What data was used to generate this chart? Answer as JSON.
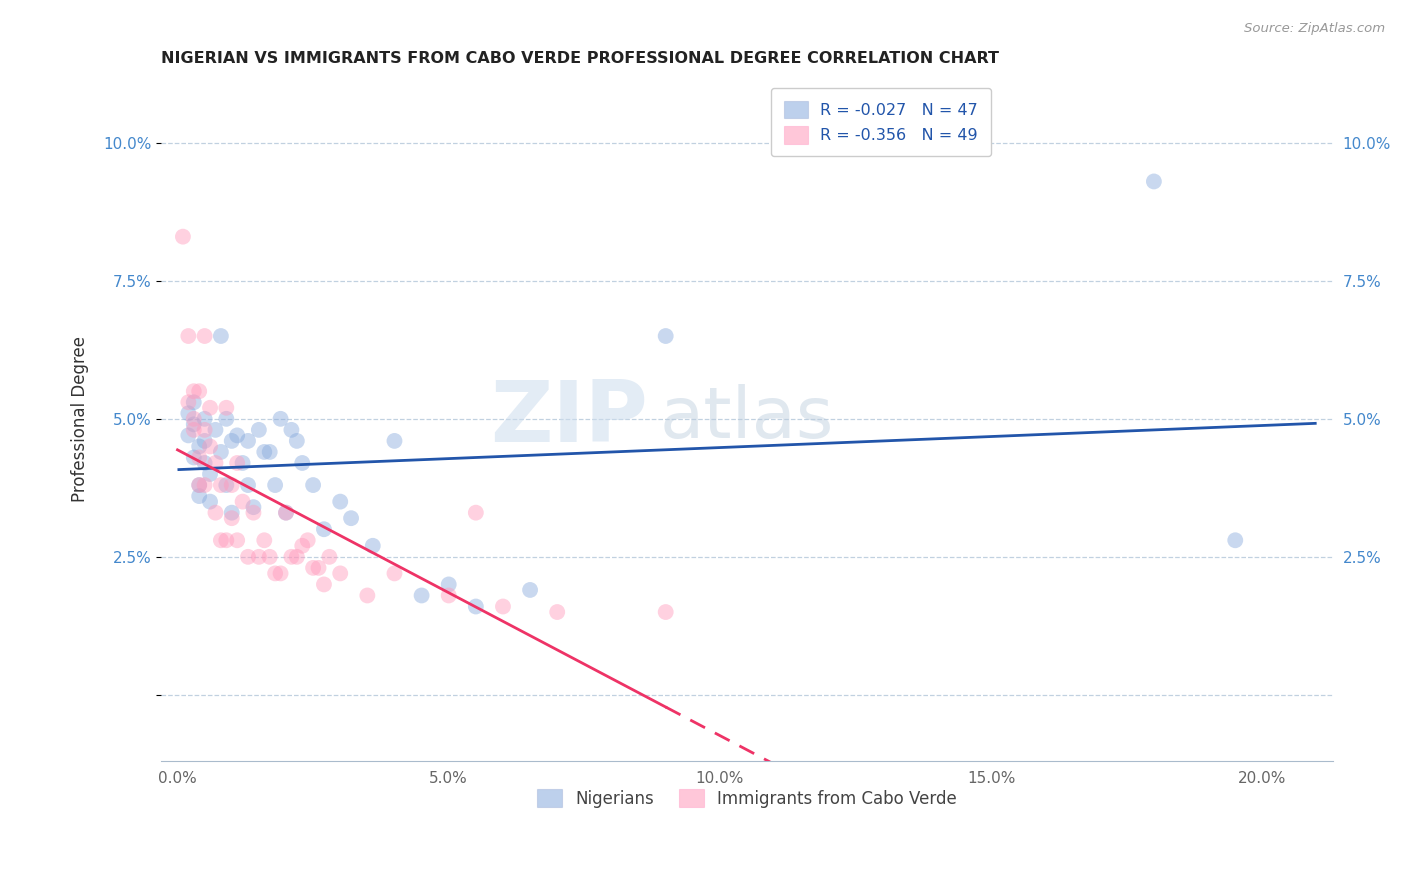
{
  "title": "NIGERIAN VS IMMIGRANTS FROM CABO VERDE PROFESSIONAL DEGREE CORRELATION CHART",
  "source": "Source: ZipAtlas.com",
  "xlabel_ticks": [
    0.0,
    0.05,
    0.1,
    0.15,
    0.2
  ],
  "xlabel_labels": [
    "0.0%",
    "5.0%",
    "10.0%",
    "15.0%",
    "20.0%"
  ],
  "ylabel_ticks": [
    0.0,
    0.025,
    0.05,
    0.075,
    0.1
  ],
  "ylabel_labels": [
    "",
    "2.5%",
    "5.0%",
    "7.5%",
    "10.0%"
  ],
  "ylabel": "Professional Degree",
  "xlim": [
    -0.003,
    0.213
  ],
  "ylim": [
    -0.012,
    0.112
  ],
  "legend_labels": [
    "R = -0.027   N = 47",
    "R = -0.356   N = 49"
  ],
  "legend_bottom_labels": [
    "Nigerians",
    "Immigrants from Cabo Verde"
  ],
  "blue_color": "#88AADD",
  "pink_color": "#FF99BB",
  "blue_line_color": "#2255AA",
  "pink_line_color": "#EE3366",
  "background_color": "#FFFFFF",
  "watermark_zip": "ZIP",
  "watermark_atlas": "atlas",
  "blue_x": [
    0.002,
    0.002,
    0.003,
    0.003,
    0.003,
    0.004,
    0.004,
    0.004,
    0.005,
    0.005,
    0.005,
    0.006,
    0.006,
    0.007,
    0.008,
    0.008,
    0.009,
    0.009,
    0.01,
    0.01,
    0.011,
    0.012,
    0.013,
    0.013,
    0.014,
    0.015,
    0.016,
    0.017,
    0.018,
    0.019,
    0.02,
    0.021,
    0.022,
    0.023,
    0.025,
    0.027,
    0.03,
    0.032,
    0.036,
    0.04,
    0.045,
    0.05,
    0.055,
    0.065,
    0.09,
    0.18,
    0.195
  ],
  "blue_y": [
    0.047,
    0.051,
    0.043,
    0.049,
    0.053,
    0.038,
    0.045,
    0.036,
    0.042,
    0.046,
    0.05,
    0.035,
    0.04,
    0.048,
    0.044,
    0.065,
    0.038,
    0.05,
    0.033,
    0.046,
    0.047,
    0.042,
    0.038,
    0.046,
    0.034,
    0.048,
    0.044,
    0.044,
    0.038,
    0.05,
    0.033,
    0.048,
    0.046,
    0.042,
    0.038,
    0.03,
    0.035,
    0.032,
    0.027,
    0.046,
    0.018,
    0.02,
    0.016,
    0.019,
    0.065,
    0.093,
    0.028
  ],
  "pink_x": [
    0.001,
    0.002,
    0.002,
    0.003,
    0.003,
    0.003,
    0.004,
    0.004,
    0.004,
    0.005,
    0.005,
    0.005,
    0.006,
    0.006,
    0.007,
    0.007,
    0.008,
    0.008,
    0.009,
    0.009,
    0.01,
    0.01,
    0.011,
    0.011,
    0.012,
    0.013,
    0.014,
    0.015,
    0.016,
    0.017,
    0.018,
    0.019,
    0.02,
    0.021,
    0.022,
    0.023,
    0.024,
    0.025,
    0.026,
    0.027,
    0.028,
    0.03,
    0.035,
    0.04,
    0.05,
    0.055,
    0.06,
    0.07,
    0.09
  ],
  "pink_y": [
    0.083,
    0.053,
    0.065,
    0.055,
    0.048,
    0.05,
    0.038,
    0.043,
    0.055,
    0.038,
    0.048,
    0.065,
    0.045,
    0.052,
    0.033,
    0.042,
    0.028,
    0.038,
    0.028,
    0.052,
    0.032,
    0.038,
    0.028,
    0.042,
    0.035,
    0.025,
    0.033,
    0.025,
    0.028,
    0.025,
    0.022,
    0.022,
    0.033,
    0.025,
    0.025,
    0.027,
    0.028,
    0.023,
    0.023,
    0.02,
    0.025,
    0.022,
    0.018,
    0.022,
    0.018,
    0.033,
    0.016,
    0.015,
    0.015
  ],
  "marker_size": 130,
  "marker_alpha": 0.45
}
